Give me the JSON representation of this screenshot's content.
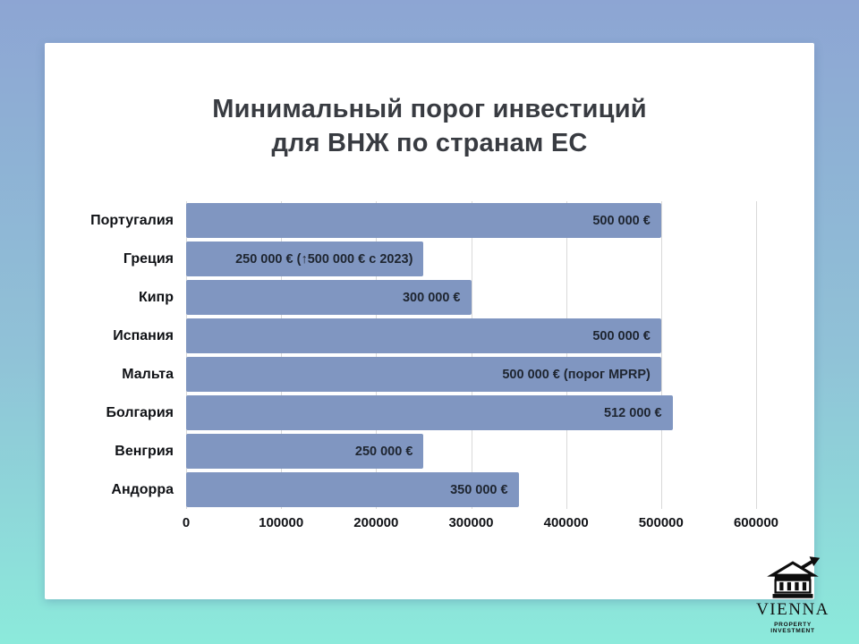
{
  "page": {
    "background_top": "#8da5d3",
    "background_bottom": "#8ceadb",
    "card_background": "#ffffff"
  },
  "chart": {
    "title_line1": "Минимальный порог инвестиций",
    "title_line2": "для ВНЖ по странам ЕС"
  },
  "chart_data": {
    "type": "bar",
    "orientation": "horizontal",
    "title": "Минимальный порог инвестиций для ВНЖ по странам ЕС",
    "categories": [
      "Португалия",
      "Греция",
      "Кипр",
      "Испания",
      "Мальта",
      "Болгария",
      "Венгрия",
      "Андорра"
    ],
    "values": [
      500000,
      250000,
      300000,
      500000,
      500000,
      512000,
      250000,
      350000
    ],
    "bar_labels": [
      "500 000 €",
      "250 000 € (↑500 000 € с 2023)",
      "300 000 €",
      "500 000 €",
      "500 000 € (порог MPRP)",
      "512 000 €",
      "250 000 €",
      "350 000 €"
    ],
    "xlim": [
      0,
      600000
    ],
    "x_ticks": [
      0,
      100000,
      200000,
      300000,
      400000,
      500000,
      600000
    ],
    "x_tick_labels": [
      "0",
      "100000",
      "200000",
      "300000",
      "400000",
      "500000",
      "600000"
    ],
    "grid": "vertical",
    "legend": "none",
    "bar_color": "#8096c1",
    "value_label_color": "#1e2530"
  },
  "logo": {
    "name": "VIENNA",
    "subtitle": "PROPERTY INVESTMENT",
    "icon": "building-with-growth-arrow-icon"
  }
}
